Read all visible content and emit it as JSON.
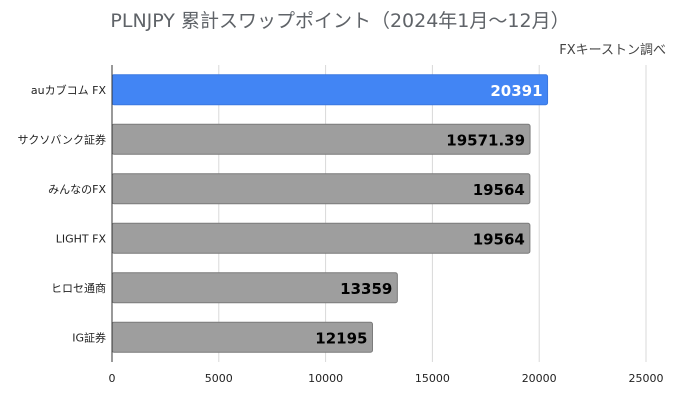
{
  "chart_data": {
    "type": "bar",
    "orientation": "horizontal",
    "title": "PLNJPY 累計スワップポイント（2024年1月〜12月）",
    "subtitle": "FXキーストン調べ",
    "categories": [
      "auカブコム FX",
      "サクソバンク証券",
      "みんなのFX",
      "LIGHT FX",
      "ヒロセ通商",
      "IG証券"
    ],
    "values": [
      20391,
      19571.39,
      19564,
      19564,
      13359,
      12195
    ],
    "value_labels": [
      "20391",
      "19571.39",
      "19564",
      "19564",
      "13359",
      "12195"
    ],
    "xlim": [
      0,
      25000
    ],
    "xticks": [
      0,
      5000,
      10000,
      15000,
      20000,
      25000
    ],
    "grid": true,
    "colors": {
      "highlight": "#4285f4",
      "default": "#9e9e9e",
      "highlight_label": "#ffffff",
      "default_label": "#000000",
      "grid": "#d9d9d9"
    },
    "highlight_index": 0
  }
}
